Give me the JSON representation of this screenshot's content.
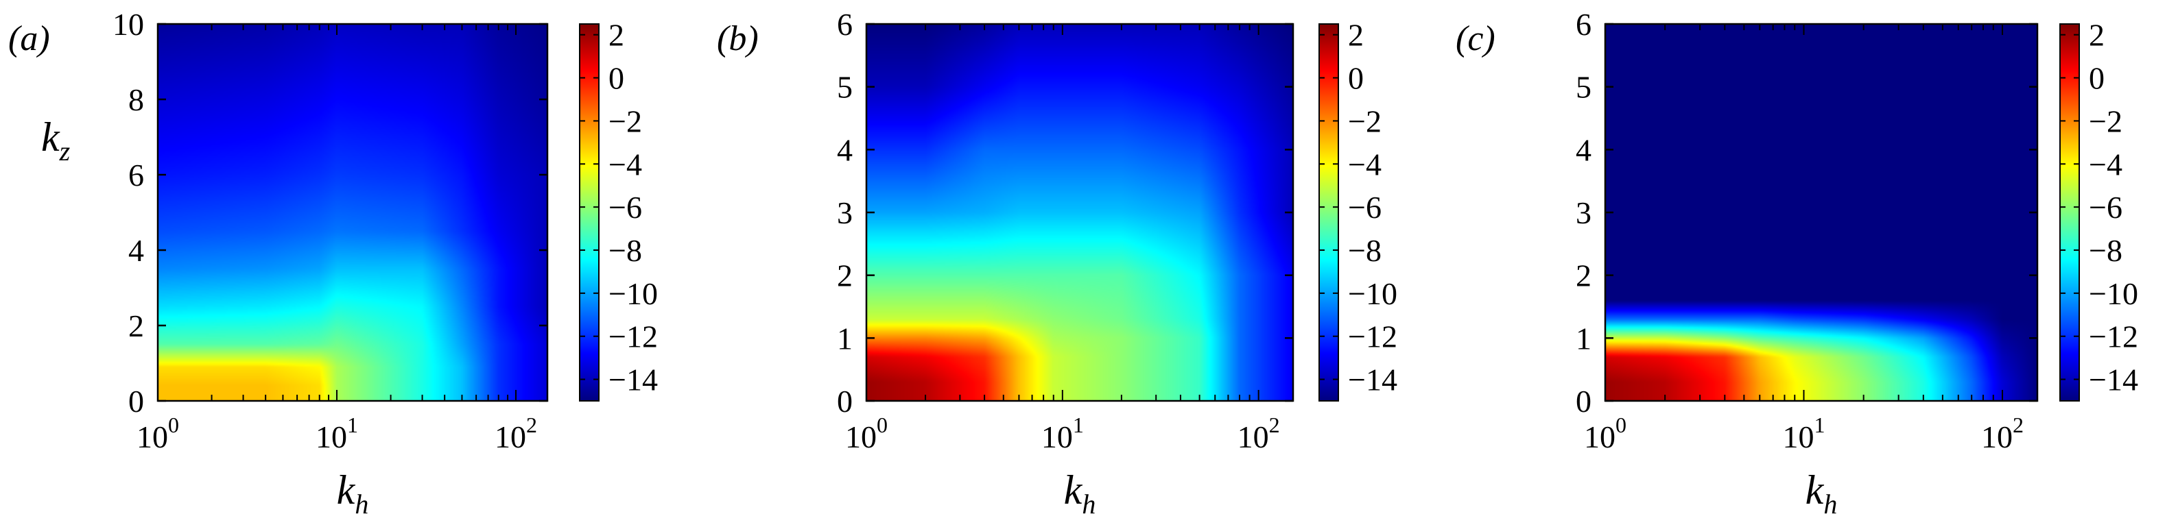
{
  "colors": {
    "colormap": [
      "#00007f",
      "#0000ff",
      "#007fff",
      "#00ffff",
      "#7fff7f",
      "#ffff00",
      "#ff7f00",
      "#ff0000",
      "#7f0000"
    ],
    "axis": "#000000"
  },
  "chart_data": [
    {
      "type": "heatmap",
      "panel_label": "(a)",
      "xlabel": {
        "var": "k",
        "sub": "h"
      },
      "ylabel": {
        "var": "k",
        "sub": "z"
      },
      "xscale": "log",
      "xlim": [
        1,
        150
      ],
      "ylim": [
        0,
        10
      ],
      "xticks": [
        {
          "base": "10",
          "exp": "0",
          "value": 1
        },
        {
          "base": "10",
          "exp": "1",
          "value": 10
        },
        {
          "base": "10",
          "exp": "2",
          "value": 100
        }
      ],
      "yticks": [
        "0",
        "2",
        "4",
        "6",
        "8",
        "10"
      ],
      "colorbar": {
        "range": [
          -15,
          2.5
        ],
        "ticks": [
          "2",
          "0",
          "−2",
          "−4",
          "−6",
          "−8",
          "−10",
          "−12",
          "−14"
        ]
      },
      "field": {
        "x": [
          1,
          4,
          8,
          10,
          30,
          50,
          80,
          150
        ],
        "y": [
          0,
          0.4,
          0.9,
          1.5,
          2.5,
          3.5,
          4.5,
          6,
          8,
          10
        ],
        "values": [
          [
            -3,
            -3,
            -3.5,
            -5.5,
            -8,
            -9.5,
            -12,
            -13.5
          ],
          [
            -3,
            -3,
            -3.5,
            -5.5,
            -8,
            -9.5,
            -12,
            -13.5
          ],
          [
            -3.5,
            -3.5,
            -4,
            -5.5,
            -8,
            -9.5,
            -12,
            -13.5
          ],
          [
            -7,
            -7,
            -6.8,
            -6.5,
            -8,
            -10,
            -12,
            -13.5
          ],
          [
            -9,
            -8.8,
            -8.5,
            -8,
            -8.5,
            -10.5,
            -12.5,
            -14
          ],
          [
            -10.5,
            -10.3,
            -10,
            -9.5,
            -9.5,
            -11,
            -12.5,
            -14
          ],
          [
            -11.5,
            -11.3,
            -11,
            -10.8,
            -11,
            -12,
            -13,
            -14
          ],
          [
            -12.5,
            -12.3,
            -12,
            -11.8,
            -12,
            -12.5,
            -13.5,
            -14
          ],
          [
            -13.5,
            -13.3,
            -13,
            -12.8,
            -13,
            -13.3,
            -14,
            -14.5
          ],
          [
            -14.5,
            -14.3,
            -14,
            -13.8,
            -14,
            -14,
            -14.5,
            -14.8
          ]
        ]
      }
    },
    {
      "type": "heatmap",
      "panel_label": "(b)",
      "xlabel": {
        "var": "k",
        "sub": "h"
      },
      "xscale": "log",
      "xlim": [
        1,
        150
      ],
      "ylim": [
        0,
        6
      ],
      "xticks": [
        {
          "base": "10",
          "exp": "0",
          "value": 1
        },
        {
          "base": "10",
          "exp": "1",
          "value": 10
        },
        {
          "base": "10",
          "exp": "2",
          "value": 100
        }
      ],
      "yticks": [
        "0",
        "1",
        "2",
        "3",
        "4",
        "5",
        "6"
      ],
      "colorbar": {
        "range": [
          -15,
          2.5
        ],
        "ticks": [
          "2",
          "0",
          "−2",
          "−4",
          "−6",
          "−8",
          "−10",
          "−12",
          "−14"
        ]
      },
      "field": {
        "x": [
          1,
          2,
          4,
          6,
          9,
          20,
          50,
          80,
          150
        ],
        "y": [
          0,
          0.3,
          0.7,
          1,
          1.3,
          2,
          3,
          4,
          5,
          6
        ],
        "values": [
          [
            2,
            1.5,
            0,
            -3,
            -5,
            -6,
            -7.5,
            -11,
            -13
          ],
          [
            2,
            1.5,
            0,
            -3,
            -5,
            -6,
            -7.5,
            -11,
            -13
          ],
          [
            1,
            0.5,
            -0.5,
            -3,
            -5,
            -6,
            -7.5,
            -11,
            -13
          ],
          [
            -2,
            -2,
            -2.5,
            -4,
            -5.5,
            -6,
            -7.5,
            -11,
            -13
          ],
          [
            -5,
            -5,
            -5,
            -5.5,
            -6,
            -6.5,
            -8,
            -11,
            -13
          ],
          [
            -7,
            -7,
            -7,
            -7,
            -7,
            -7,
            -8.5,
            -11,
            -13
          ],
          [
            -10,
            -10,
            -9.8,
            -9.5,
            -9.5,
            -9.5,
            -10,
            -12,
            -14
          ],
          [
            -12,
            -12,
            -11,
            -11,
            -11,
            -11,
            -11.5,
            -12.5,
            -14
          ],
          [
            -14,
            -14,
            -13,
            -12.5,
            -12.5,
            -12.5,
            -13,
            -13.5,
            -14.5
          ],
          [
            -15,
            -15,
            -14.5,
            -14,
            -14,
            -14,
            -14,
            -14.5,
            -15
          ]
        ]
      }
    },
    {
      "type": "heatmap",
      "panel_label": "(c)",
      "xlabel": {
        "var": "k",
        "sub": "h"
      },
      "xscale": "log",
      "xlim": [
        1,
        150
      ],
      "ylim": [
        0,
        6
      ],
      "xticks": [
        {
          "base": "10",
          "exp": "0",
          "value": 1
        },
        {
          "base": "10",
          "exp": "1",
          "value": 10
        },
        {
          "base": "10",
          "exp": "2",
          "value": 100
        }
      ],
      "yticks": [
        "0",
        "1",
        "2",
        "3",
        "4",
        "5",
        "6"
      ],
      "colorbar": {
        "range": [
          -15,
          2.5
        ],
        "ticks": [
          "2",
          "0",
          "−2",
          "−4",
          "−6",
          "−8",
          "−10",
          "−12",
          "−14"
        ]
      },
      "field": {
        "x": [
          1,
          2,
          4,
          6,
          9,
          20,
          40,
          70,
          100,
          150
        ],
        "y": [
          0,
          0.3,
          0.7,
          1,
          1.3,
          1.6,
          2,
          6
        ],
        "values": [
          [
            2,
            1.5,
            0,
            -2.5,
            -4,
            -6,
            -8,
            -11,
            -13.5,
            -15
          ],
          [
            2,
            1.5,
            0,
            -2.5,
            -4,
            -6,
            -8,
            -11,
            -13.5,
            -15
          ],
          [
            1,
            0.5,
            -0.5,
            -3,
            -4.5,
            -6.5,
            -8.5,
            -11.5,
            -14,
            -15
          ],
          [
            -5,
            -5,
            -6,
            -7,
            -7.5,
            -8.5,
            -10,
            -12.5,
            -14.5,
            -15
          ],
          [
            -11,
            -11,
            -11,
            -11,
            -11.5,
            -12,
            -13,
            -14,
            -15,
            -15
          ],
          [
            -15,
            -15,
            -15,
            -15,
            -15,
            -15,
            -15,
            -15,
            -15,
            -15
          ],
          [
            -15,
            -15,
            -15,
            -15,
            -15,
            -15,
            -15,
            -15,
            -15,
            -15
          ],
          [
            -15,
            -15,
            -15,
            -15,
            -15,
            -15,
            -15,
            -15,
            -15,
            -15
          ]
        ]
      }
    }
  ]
}
